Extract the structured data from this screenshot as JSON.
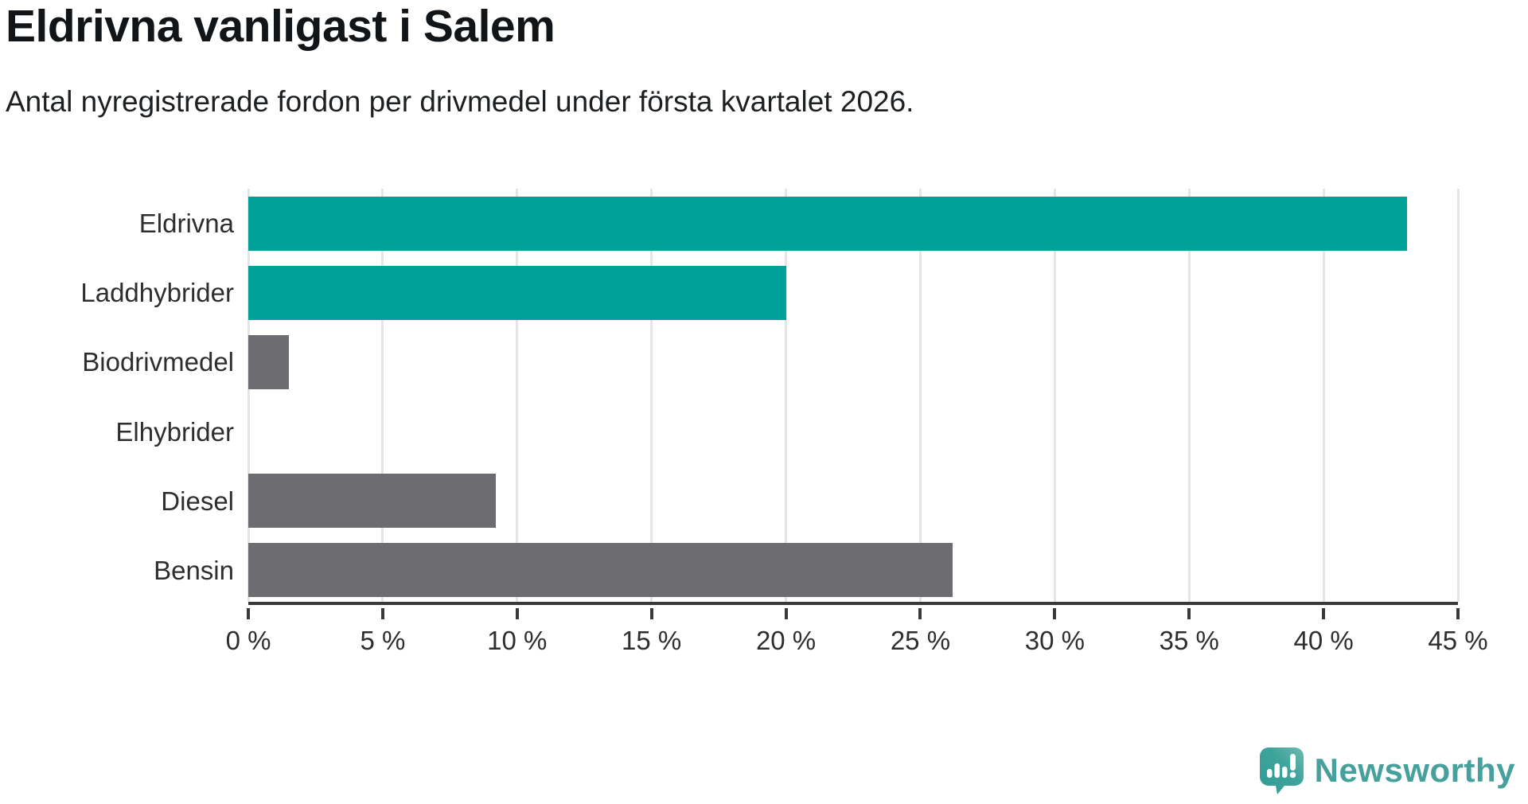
{
  "header": {
    "title": "Eldrivna vanligast i Salem",
    "subtitle": "Antal nyregistrerade fordon per drivmedel under första kvartalet 2026."
  },
  "chart_data": {
    "type": "bar",
    "orientation": "horizontal",
    "title": "Eldrivna vanligast i Salem",
    "subtitle": "Antal nyregistrerade fordon per drivmedel under första kvartalet 2026.",
    "categories": [
      "Eldrivna",
      "Laddhybrider",
      "Biodrivmedel",
      "Elhybrider",
      "Diesel",
      "Bensin"
    ],
    "values": [
      43.1,
      20.0,
      1.5,
      0,
      9.2,
      26.2
    ],
    "unit": "%",
    "xlim": [
      0,
      45
    ],
    "x_ticks": [
      0,
      5,
      10,
      15,
      20,
      25,
      30,
      35,
      40,
      45
    ],
    "x_tick_labels": [
      "0 %",
      "5 %",
      "10 %",
      "15 %",
      "20 %",
      "25 %",
      "30 %",
      "35 %",
      "40 %",
      "45 %"
    ],
    "bar_colors": [
      "#00a199",
      "#00a199",
      "#6c6c71",
      "#6c6c71",
      "#6c6c71",
      "#6c6c71"
    ],
    "grid": true,
    "legend": false
  },
  "colors": {
    "highlight": "#00a199",
    "neutral": "#6c6c71",
    "gridline": "#e5e5e5",
    "axis": "#39393b",
    "text": "#2e2e31"
  },
  "branding": {
    "logo_text": "Newsworthy",
    "logo_color": "#46a09c",
    "logo_icon": "speech-bubble-bar-chart-exclamation"
  }
}
